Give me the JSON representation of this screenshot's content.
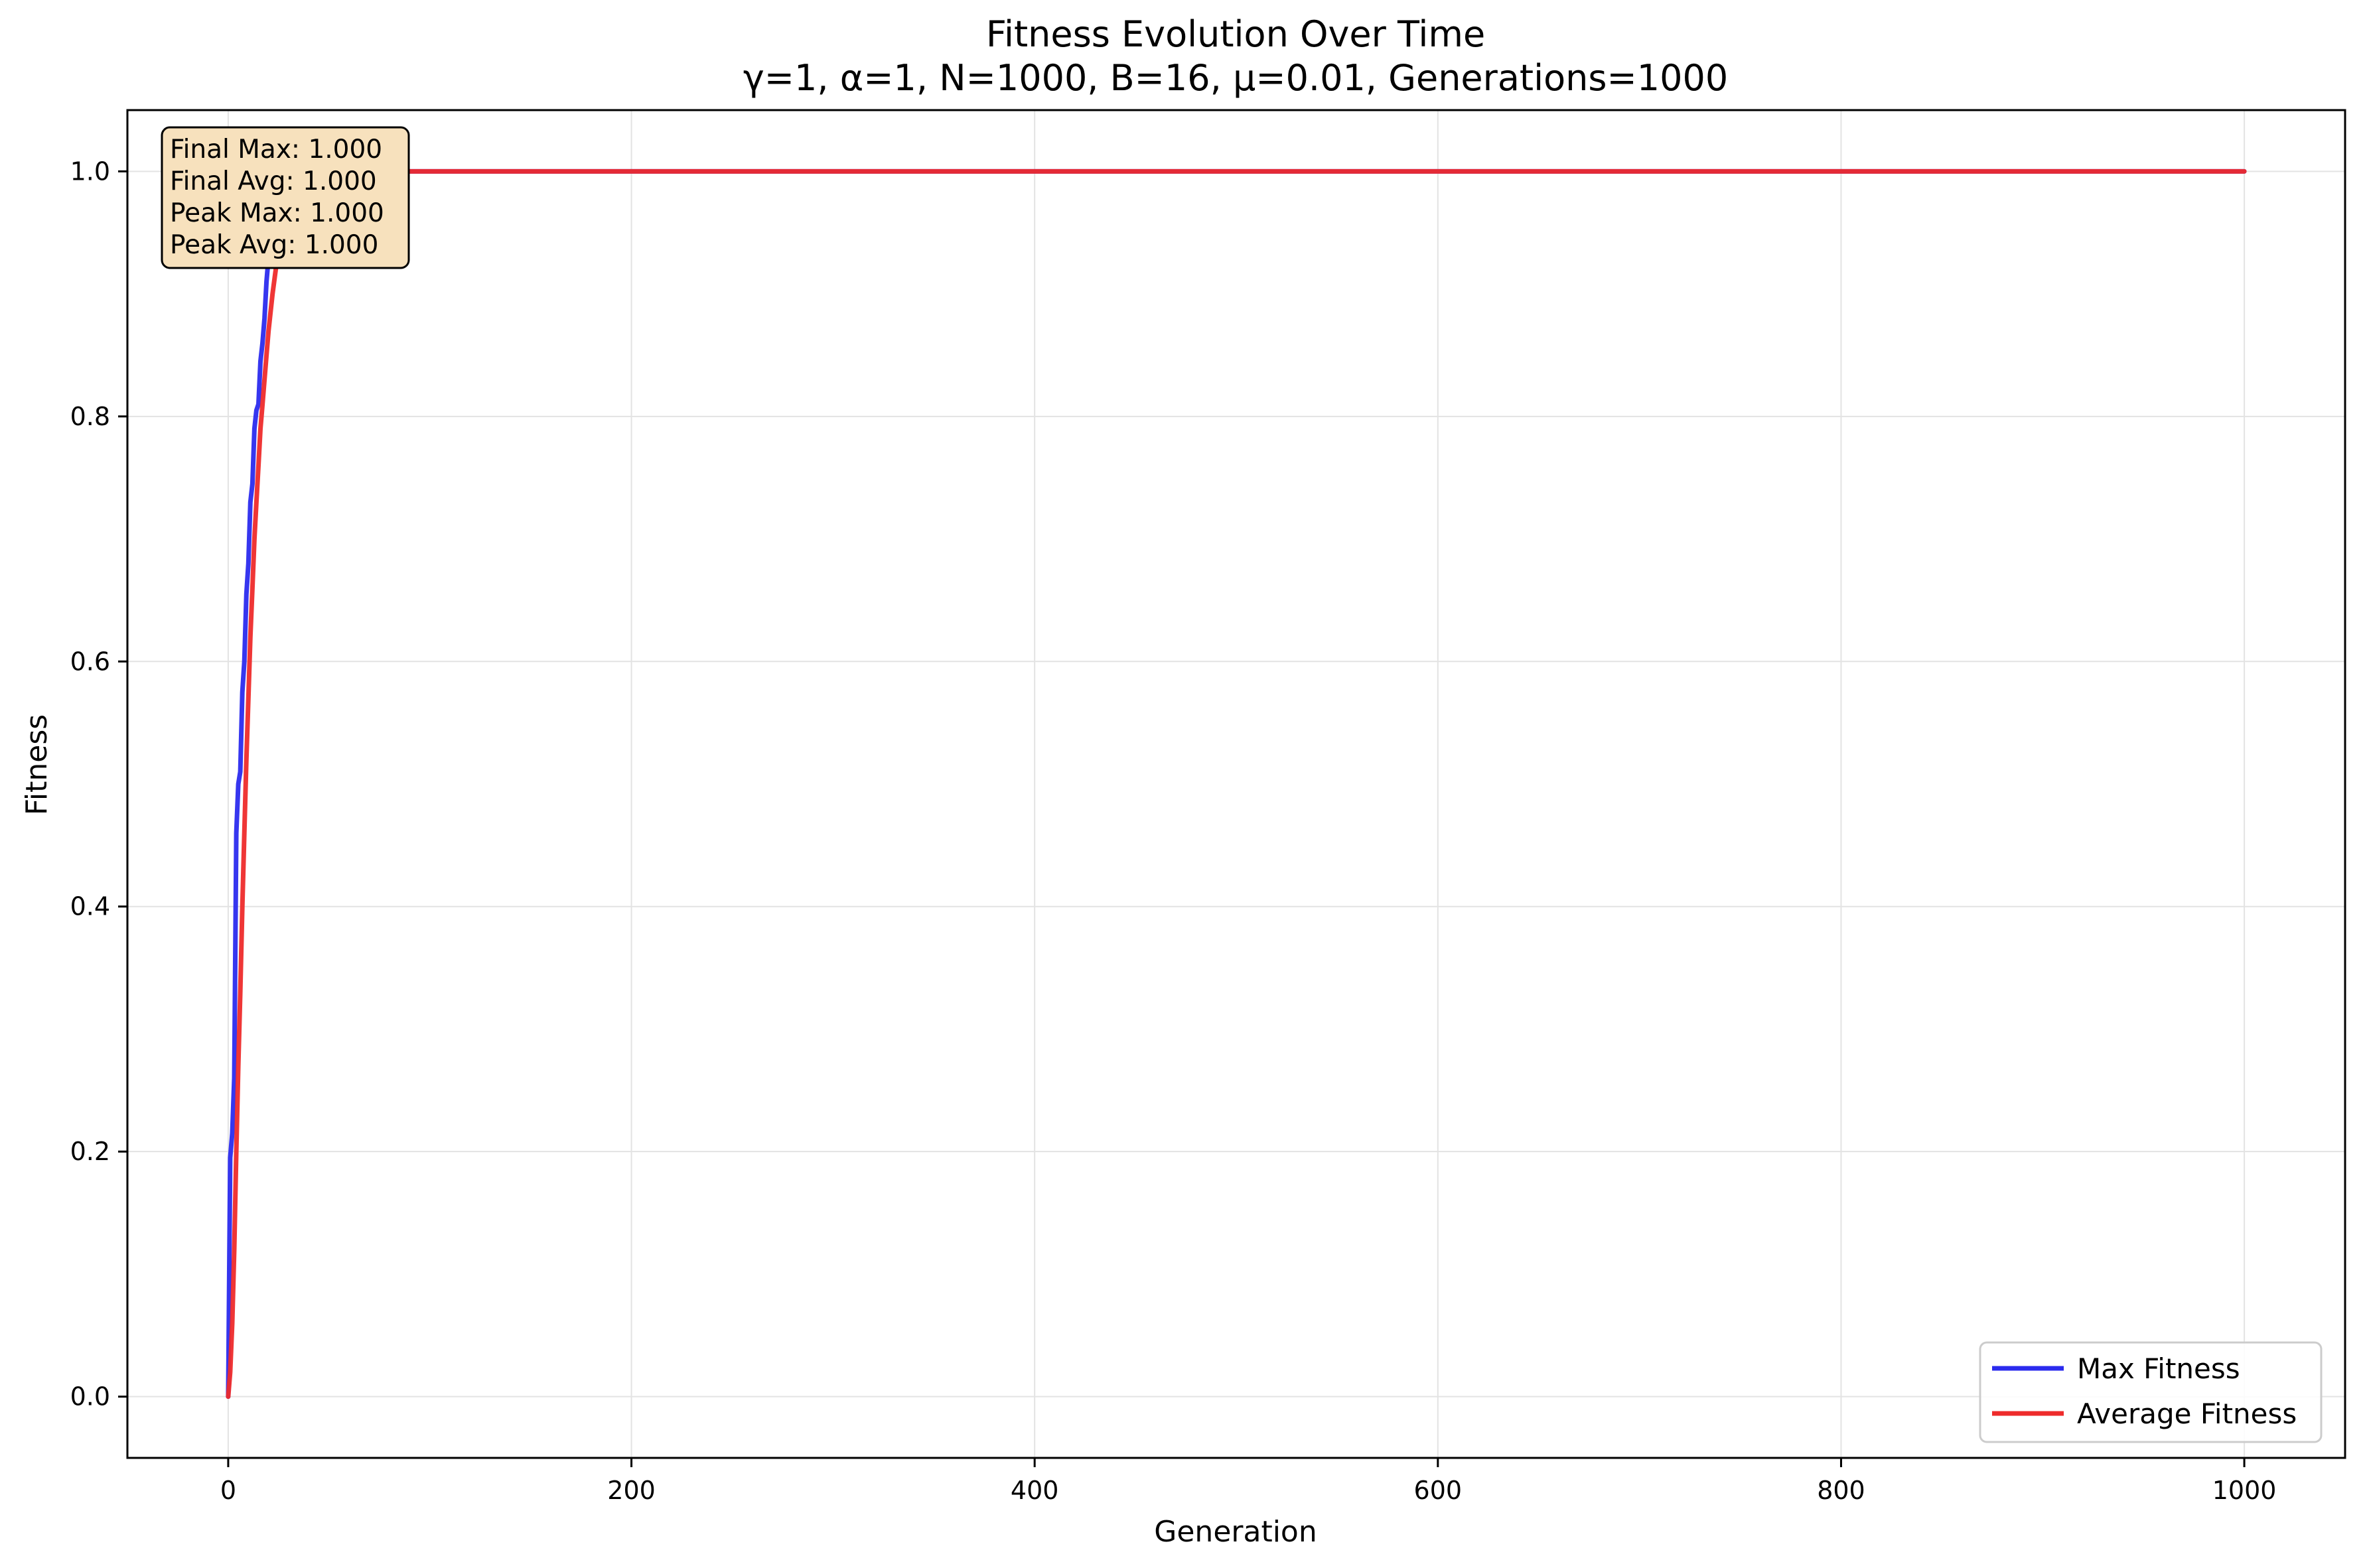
{
  "chart_data": {
    "type": "line",
    "title": "Fitness Evolution Over Time",
    "subtitle": "γ=1, α=1, N=1000, B=16, μ=0.01, Generations=1000",
    "xlabel": "Generation",
    "ylabel": "Fitness",
    "xlim": [
      -50,
      1050
    ],
    "ylim": [
      -0.05,
      1.05
    ],
    "xticks": [
      0,
      200,
      400,
      600,
      800,
      1000
    ],
    "xtick_labels": [
      "0",
      "200",
      "400",
      "600",
      "800",
      "1000"
    ],
    "yticks": [
      0.0,
      0.2,
      0.4,
      0.6,
      0.8,
      1.0
    ],
    "ytick_labels": [
      "0.0",
      "0.2",
      "0.4",
      "0.6",
      "0.8",
      "1.0"
    ],
    "grid": true,
    "legend_position": "lower-right",
    "series": [
      {
        "name": "Max Fitness",
        "color": "#2b2bee",
        "x": [
          0,
          1,
          2,
          3,
          4,
          5,
          6,
          7,
          8,
          9,
          10,
          11,
          12,
          13,
          14,
          15,
          16,
          17,
          18,
          19,
          20,
          21,
          22,
          23,
          24,
          25,
          26,
          27,
          28,
          29,
          30,
          35,
          40,
          1000
        ],
        "y": [
          0.0,
          0.195,
          0.215,
          0.26,
          0.46,
          0.5,
          0.51,
          0.575,
          0.6,
          0.655,
          0.68,
          0.73,
          0.745,
          0.79,
          0.805,
          0.81,
          0.845,
          0.86,
          0.88,
          0.91,
          0.93,
          0.95,
          0.96,
          0.975,
          0.985,
          0.99,
          0.995,
          1.0,
          1.0,
          1.0,
          1.0,
          1.0,
          1.0,
          1.0
        ]
      },
      {
        "name": "Average Fitness",
        "color": "#ee2b2b",
        "x": [
          0,
          1,
          2,
          3,
          4,
          5,
          6,
          7,
          8,
          9,
          10,
          11,
          12,
          13,
          14,
          15,
          16,
          17,
          18,
          19,
          20,
          22,
          24,
          26,
          28,
          30,
          32,
          34,
          36,
          38,
          40,
          45,
          50,
          1000
        ],
        "y": [
          0.0,
          0.02,
          0.06,
          0.12,
          0.2,
          0.27,
          0.33,
          0.4,
          0.46,
          0.52,
          0.57,
          0.62,
          0.66,
          0.7,
          0.73,
          0.76,
          0.79,
          0.81,
          0.83,
          0.85,
          0.87,
          0.9,
          0.925,
          0.945,
          0.96,
          0.97,
          0.98,
          0.987,
          0.993,
          0.997,
          1.0,
          1.0,
          1.0,
          1.0
        ]
      }
    ],
    "stats_box": [
      "Final Max: 1.000",
      "Final Avg: 1.000",
      "Peak Max: 1.000",
      "Peak Avg: 1.000"
    ],
    "stats_box_color": "#f7e1bd"
  }
}
